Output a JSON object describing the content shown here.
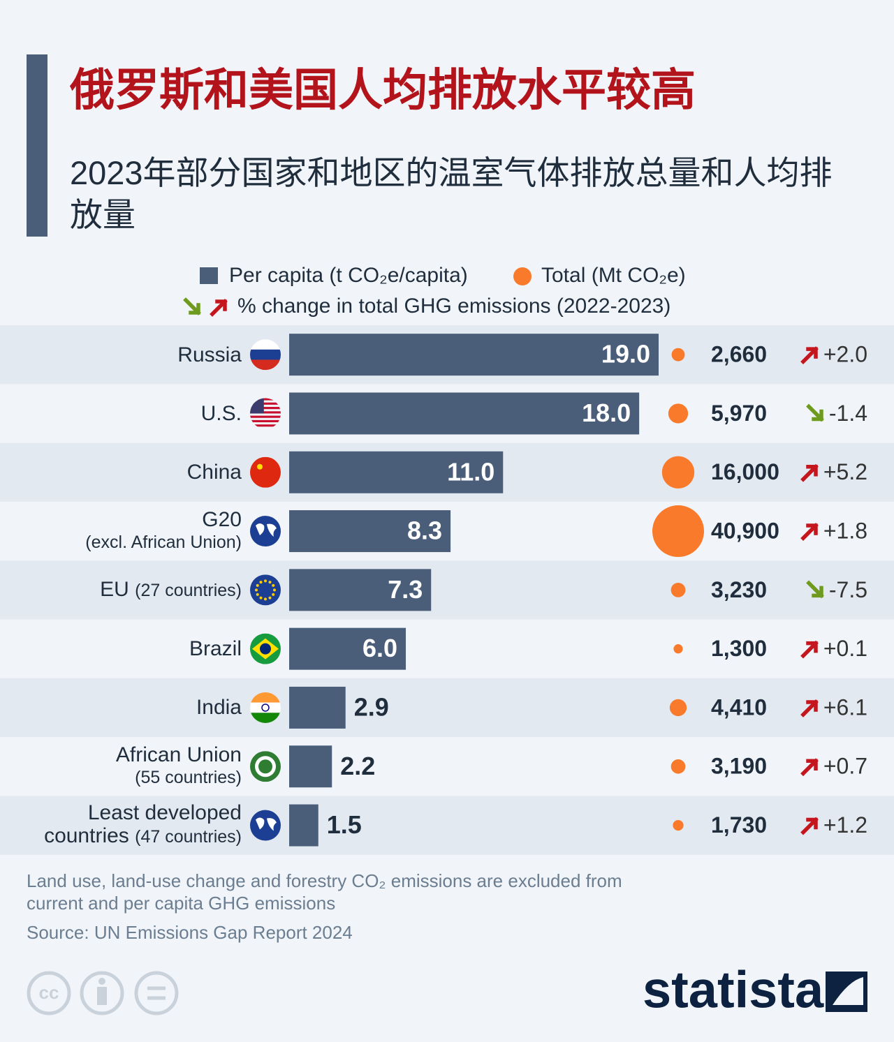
{
  "title": "俄罗斯和美国人均排放水平较高",
  "subtitle": "2023年部分国家和地区的温室气体排放总量和人均排放量",
  "chart_data": {
    "type": "bar",
    "categories": [
      "Russia",
      "U.S.",
      "China",
      "G20",
      "EU",
      "Brazil",
      "India",
      "African Union",
      "Least developed countries"
    ],
    "category_notes": [
      null,
      null,
      null,
      "(excl. African Union)",
      "(27 countries)",
      null,
      null,
      "(55 countries)",
      "(47 countries)"
    ],
    "series": [
      {
        "name": "Per capita (t CO₂e/capita)",
        "color": "#4a5e7a",
        "values": [
          19.0,
          18.0,
          11.0,
          8.3,
          7.3,
          6.0,
          2.9,
          2.2,
          1.5
        ],
        "value_labels": [
          "19.0",
          "18.0",
          "11.0",
          "8.3",
          "7.3",
          "6.0",
          "2.9",
          "2.2",
          "1.5"
        ]
      },
      {
        "name": "Total (Mt CO₂e)",
        "color": "#f97a2a",
        "values": [
          2660,
          5970,
          16000,
          40900,
          3230,
          1300,
          4410,
          3190,
          1730
        ],
        "value_labels": [
          "2,660",
          "5,970",
          "16,000",
          "40,900",
          "3,230",
          "1,300",
          "4,410",
          "3,190",
          "1,730"
        ]
      },
      {
        "name": "% change in total GHG emissions (2022-2023)",
        "up_color": "#c4161c",
        "down_color": "#6e9b1e",
        "values": [
          2.0,
          -1.4,
          5.2,
          1.8,
          -7.5,
          0.1,
          6.1,
          0.7,
          1.2
        ],
        "value_labels": [
          "+2.0",
          "-1.4",
          "+5.2",
          "+1.8",
          "-7.5",
          "+0.1",
          "+6.1",
          "+0.7",
          "+1.2"
        ]
      }
    ]
  },
  "footnote": "Land use, land-use change and forestry CO₂ emissions are excluded from current and per capita GHG emissions",
  "source": "Source: UN Emissions Gap Report 2024",
  "brand": "statista"
}
